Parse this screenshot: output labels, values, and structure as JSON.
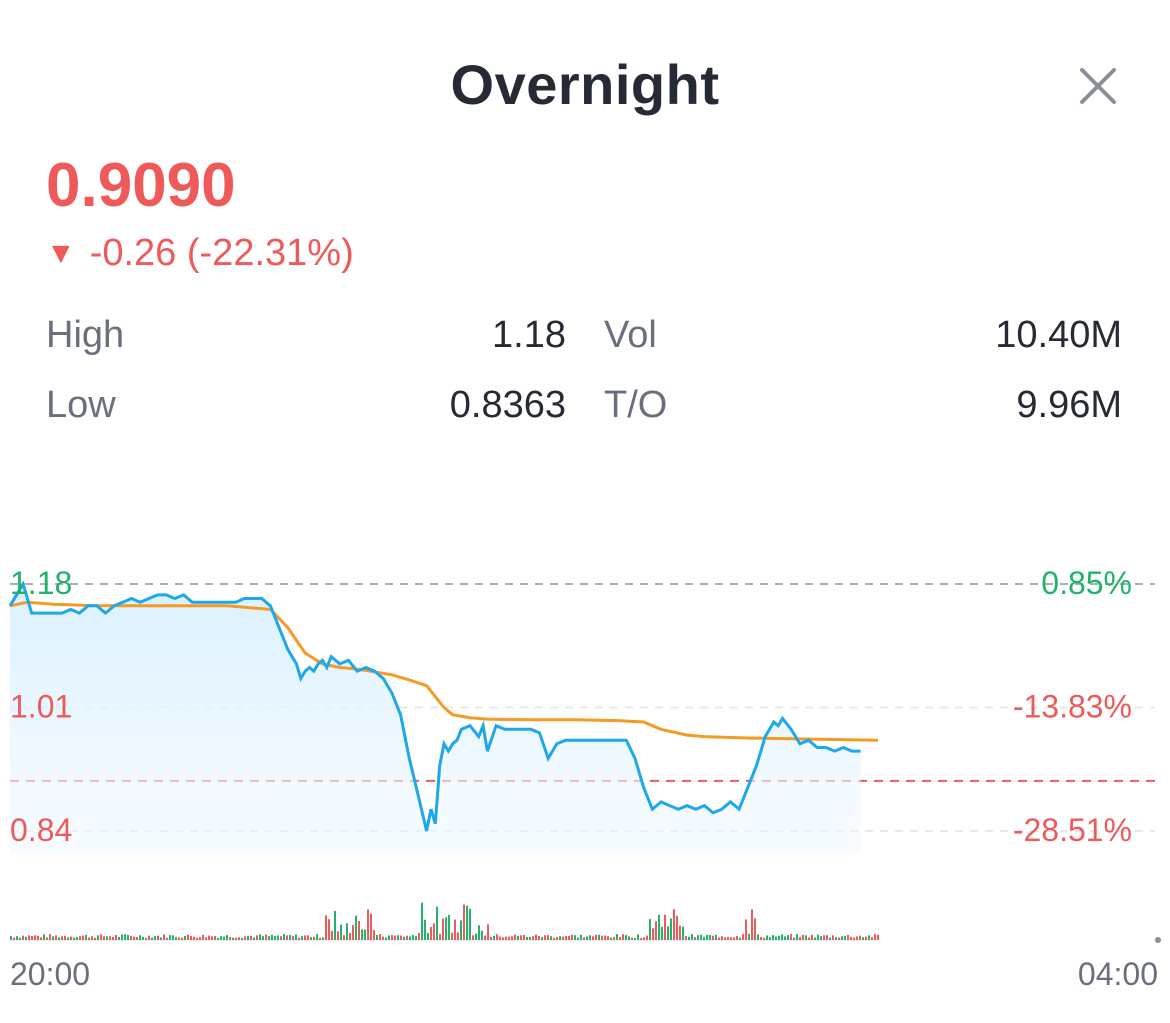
{
  "header": {
    "title": "Overnight",
    "close_icon": "close-icon"
  },
  "quote": {
    "price": "0.9090",
    "change_arrow": "▼",
    "change": "-0.26 (-22.31%)",
    "color_down": "#ee5a5a",
    "color_up": "#21b36b"
  },
  "stats": {
    "high_label": "High",
    "high_value": "1.18",
    "low_label": "Low",
    "low_value": "0.8363",
    "vol_label": "Vol",
    "vol_value": "10.40M",
    "to_label": "T/O",
    "to_value": "9.96M"
  },
  "chart_data": {
    "type": "line",
    "y_left_ticks": [
      "1.18",
      "1.01",
      "0.84"
    ],
    "y_right_ticks": [
      "0.85%",
      "-13.83%",
      "-28.51%"
    ],
    "x_ticks": [
      "20:00",
      "04:00"
    ],
    "ylim": [
      0.84,
      1.18
    ],
    "reference_price": 0.909,
    "price_color": "#1ea7ea",
    "avg_color": "#f59a23",
    "series": [
      {
        "kind": "price",
        "x": [
          0,
          0.01,
          0.015,
          0.02,
          0.025,
          0.03,
          0.04,
          0.05,
          0.06,
          0.07,
          0.08,
          0.09,
          0.1,
          0.11,
          0.12,
          0.13,
          0.14,
          0.15,
          0.16,
          0.17,
          0.18,
          0.19,
          0.2,
          0.21,
          0.22,
          0.23,
          0.24,
          0.25,
          0.26,
          0.27,
          0.28,
          0.29,
          0.3,
          0.31,
          0.32,
          0.33,
          0.335,
          0.34,
          0.345,
          0.35,
          0.355,
          0.36,
          0.365,
          0.37,
          0.38,
          0.39,
          0.4,
          0.41,
          0.42,
          0.43,
          0.44,
          0.45,
          0.46,
          0.47,
          0.48,
          0.485,
          0.49,
          0.495,
          0.5,
          0.505,
          0.51,
          0.515,
          0.52,
          0.53,
          0.54,
          0.545,
          0.55,
          0.56,
          0.57,
          0.58,
          0.59,
          0.6,
          0.61,
          0.62,
          0.63,
          0.64,
          0.65,
          0.66,
          0.67,
          0.68,
          0.69,
          0.7,
          0.71,
          0.72,
          0.73,
          0.74,
          0.745,
          0.75,
          0.76,
          0.77,
          0.78,
          0.79,
          0.8,
          0.81,
          0.82,
          0.83,
          0.84,
          0.85,
          0.86,
          0.87,
          0.88,
          0.885,
          0.89,
          0.9,
          0.91,
          0.92,
          0.93,
          0.94,
          0.95,
          0.96,
          0.97,
          0.98
        ],
        "y": [
          1.15,
          1.17,
          1.18,
          1.16,
          1.14,
          1.14,
          1.14,
          1.14,
          1.14,
          1.145,
          1.14,
          1.15,
          1.15,
          1.14,
          1.15,
          1.155,
          1.16,
          1.155,
          1.16,
          1.165,
          1.165,
          1.16,
          1.165,
          1.155,
          1.155,
          1.155,
          1.155,
          1.155,
          1.155,
          1.16,
          1.16,
          1.16,
          1.15,
          1.12,
          1.09,
          1.07,
          1.05,
          1.06,
          1.065,
          1.06,
          1.07,
          1.075,
          1.065,
          1.08,
          1.07,
          1.075,
          1.06,
          1.065,
          1.06,
          1.05,
          1.03,
          1.0,
          0.94,
          0.89,
          0.84,
          0.87,
          0.85,
          0.93,
          0.96,
          0.95,
          0.96,
          0.965,
          0.98,
          0.985,
          0.97,
          0.985,
          0.95,
          0.985,
          0.98,
          0.98,
          0.98,
          0.98,
          0.975,
          0.94,
          0.96,
          0.965,
          0.965,
          0.965,
          0.965,
          0.965,
          0.965,
          0.965,
          0.965,
          0.94,
          0.9,
          0.87,
          0.875,
          0.88,
          0.875,
          0.87,
          0.875,
          0.87,
          0.875,
          0.865,
          0.87,
          0.88,
          0.87,
          0.9,
          0.93,
          0.97,
          0.99,
          0.985,
          0.995,
          0.98,
          0.96,
          0.965,
          0.955,
          0.955,
          0.95,
          0.955,
          0.95,
          0.95
        ]
      },
      {
        "kind": "average",
        "x": [
          0,
          0.02,
          0.05,
          0.1,
          0.15,
          0.2,
          0.25,
          0.3,
          0.32,
          0.34,
          0.36,
          0.38,
          0.4,
          0.44,
          0.46,
          0.48,
          0.5,
          0.51,
          0.53,
          0.55,
          0.6,
          0.65,
          0.7,
          0.73,
          0.75,
          0.78,
          0.8,
          0.85,
          0.9,
          0.95,
          1.0
        ],
        "y": [
          1.15,
          1.155,
          1.152,
          1.15,
          1.15,
          1.15,
          1.15,
          1.145,
          1.12,
          1.085,
          1.07,
          1.065,
          1.063,
          1.055,
          1.048,
          1.04,
          1.01,
          1.0,
          0.996,
          0.994,
          0.993,
          0.993,
          0.992,
          0.99,
          0.98,
          0.972,
          0.97,
          0.968,
          0.967,
          0.966,
          0.965
        ]
      }
    ],
    "volume": {
      "up_color": "#21b36b",
      "down_color": "#ee5a5a"
    }
  }
}
